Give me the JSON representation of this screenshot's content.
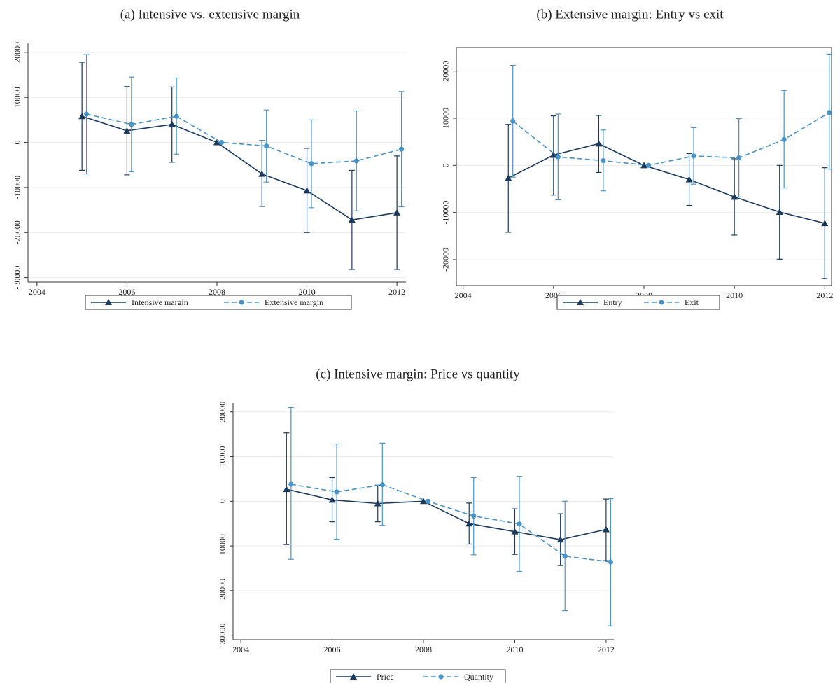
{
  "chart_data": [
    {
      "type": "line",
      "title": "(a) Intensive vs. extensive margin",
      "xlim": [
        2003.8,
        2012.2
      ],
      "xticks": [
        2004,
        2006,
        2008,
        2010,
        2012
      ],
      "ylim": [
        -31000,
        22000
      ],
      "yticks": [
        -30000,
        -20000,
        -10000,
        0,
        10000,
        20000
      ],
      "grid": true,
      "frame": false,
      "series": [
        {
          "name": "Intensive margin",
          "color": "#1b3a5c",
          "linestyle": "solid",
          "marker": "triangle",
          "x": [
            2005,
            2006,
            2007,
            2008,
            2009,
            2010,
            2011,
            2012
          ],
          "values": [
            5800,
            2600,
            4000,
            0,
            -7000,
            -10700,
            -17200,
            -15600
          ],
          "lower": [
            -6200,
            -7200,
            -4400,
            null,
            -14200,
            -20000,
            -28200,
            -28200
          ],
          "upper": [
            17800,
            12400,
            12300,
            null,
            400,
            -1300,
            -6200,
            -3000
          ]
        },
        {
          "name": "Extensive margin",
          "color": "#4a93c6",
          "linestyle": "dashed",
          "marker": "circle",
          "x": [
            2005.1,
            2006.1,
            2007.1,
            2008.1,
            2009.1,
            2010.1,
            2011.1,
            2012.1
          ],
          "values": [
            6300,
            4000,
            5800,
            0,
            -800,
            -4700,
            -4100,
            -1500
          ],
          "lower": [
            -7000,
            -6500,
            -2600,
            null,
            -8800,
            -14500,
            -15200,
            -14300
          ],
          "upper": [
            19500,
            14500,
            14300,
            null,
            7200,
            5000,
            7000,
            11300
          ]
        }
      ]
    },
    {
      "type": "line",
      "title": "(b) Extensive margin: Entry vs exit",
      "xlim": [
        2003.85,
        2012.15
      ],
      "xticks": [
        2004,
        2006,
        2008,
        2010,
        2012
      ],
      "ylim": [
        -25500,
        25000
      ],
      "yticks": [
        -20000,
        -10000,
        0,
        10000,
        20000
      ],
      "grid": true,
      "frame": true,
      "series": [
        {
          "name": "Entry",
          "color": "#1b3a5c",
          "linestyle": "solid",
          "marker": "triangle",
          "x": [
            2005,
            2006,
            2007,
            2008,
            2009,
            2010,
            2011,
            2012
          ],
          "values": [
            -2700,
            2200,
            4600,
            0,
            -3000,
            -6700,
            -9900,
            -12300
          ],
          "lower": [
            -14200,
            -6300,
            -1500,
            null,
            -8500,
            -14800,
            -19900,
            -24000
          ],
          "upper": [
            8700,
            10500,
            10600,
            null,
            2500,
            1400,
            0,
            -500
          ]
        },
        {
          "name": "Exit",
          "color": "#4a93c6",
          "linestyle": "dashed",
          "marker": "circle",
          "x": [
            2005.1,
            2006.1,
            2007.1,
            2008.1,
            2009.1,
            2010.1,
            2011.1,
            2012.1
          ],
          "values": [
            9400,
            1800,
            1000,
            0,
            2000,
            1600,
            5500,
            11200
          ],
          "lower": [
            -2500,
            -7300,
            -5400,
            null,
            -4000,
            -6700,
            -4800,
            -800
          ],
          "upper": [
            21200,
            10900,
            7500,
            null,
            8000,
            9900,
            15900,
            23600
          ]
        }
      ]
    },
    {
      "type": "line",
      "title": "(c) Intensive margin: Price vs quantity",
      "xlim": [
        2003.83,
        2012.17
      ],
      "xticks": [
        2004,
        2006,
        2008,
        2010,
        2012
      ],
      "ylim": [
        -31000,
        22000
      ],
      "yticks": [
        -30000,
        -20000,
        -10000,
        0,
        10000,
        20000
      ],
      "grid": true,
      "frame": false,
      "series": [
        {
          "name": "Price",
          "color": "#1b3a5c",
          "linestyle": "solid",
          "marker": "triangle",
          "x": [
            2005,
            2006,
            2007,
            2008,
            2009,
            2010,
            2011,
            2012
          ],
          "values": [
            2700,
            300,
            -500,
            0,
            -5000,
            -6800,
            -8600,
            -6300
          ],
          "lower": [
            -9700,
            -4600,
            -4600,
            null,
            -9600,
            -11900,
            -14400,
            -13300
          ],
          "upper": [
            15300,
            5300,
            3600,
            null,
            -400,
            -1700,
            -2800,
            500
          ]
        },
        {
          "name": "Quantity",
          "color": "#4a93c6",
          "linestyle": "dashed",
          "marker": "circle",
          "x": [
            2005.1,
            2006.1,
            2007.1,
            2008.1,
            2009.1,
            2010.1,
            2011.1,
            2012.1
          ],
          "values": [
            3800,
            2100,
            3700,
            0,
            -3300,
            -5100,
            -12300,
            -13600
          ],
          "lower": [
            -13000,
            -8500,
            -5400,
            null,
            -12000,
            -15700,
            -24500,
            -27900
          ],
          "upper": [
            21000,
            12800,
            13000,
            null,
            5300,
            5600,
            0,
            600
          ]
        }
      ]
    }
  ]
}
